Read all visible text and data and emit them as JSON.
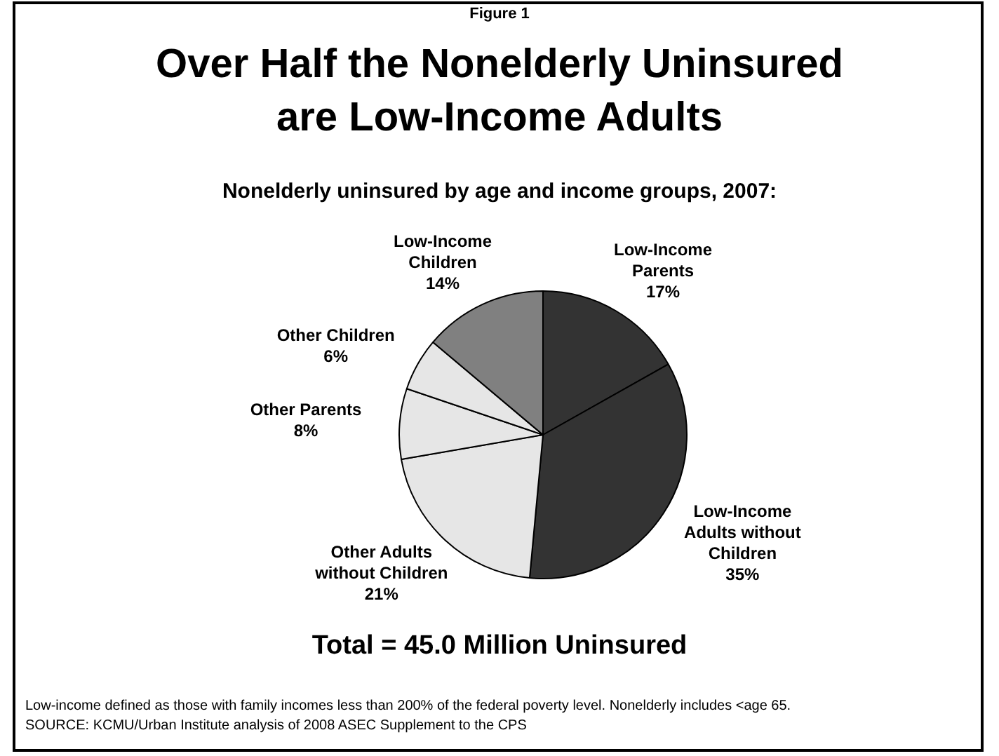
{
  "chart_data": {
    "type": "pie",
    "title": "Over Half the Nonelderly Uninsured\nare Low-Income Adults",
    "subtitle": "Nonelderly uninsured by age and income groups, 2007:",
    "categories": [
      "Low-Income\nParents",
      "Low-Income\nAdults without\nChildren",
      "Other Adults\nwithout Children",
      "Other Parents",
      "Other Children",
      "Low-Income\nChildren"
    ],
    "values": [
      17,
      35,
      21,
      8,
      6,
      14
    ],
    "value_labels": [
      "17%",
      "35%",
      "21%",
      "8%",
      "6%",
      "14%"
    ],
    "colors": [
      "#333333",
      "#333333",
      "#e6e6e6",
      "#e6e6e6",
      "#e6e6e6",
      "#808080"
    ],
    "annotations": [
      "Figure 1",
      "Total = 45.0 Million Uninsured",
      "Low-income defined as those with family incomes less than 200% of the federal poverty level. Nonelderly includes <age 65.",
      "SOURCE: KCMU/Urban Institute analysis of 2008 ASEC Supplement to the CPS"
    ]
  }
}
